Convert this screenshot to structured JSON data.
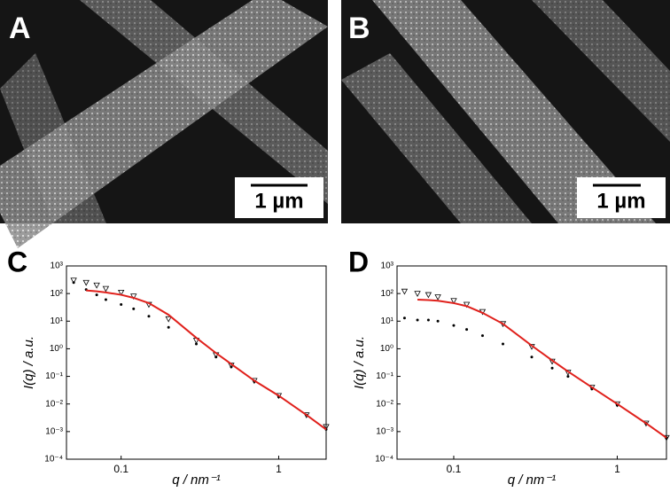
{
  "panels": [
    {
      "label": "A",
      "scale_bar": "1 µm"
    },
    {
      "label": "B",
      "scale_bar": "1 µm"
    }
  ],
  "chart_data": [
    {
      "type": "line",
      "panel": "C",
      "xlabel": "q / nm⁻¹",
      "ylabel": "I(q) / a.u.",
      "xscale": "log",
      "yscale": "log",
      "xlim": [
        0.045,
        2
      ],
      "ylim": [
        0.0001,
        1000
      ],
      "xticks": [
        0.1,
        1
      ],
      "yticks": [
        {
          "value": 0.0001,
          "label": "10⁻⁴"
        },
        {
          "value": 0.001,
          "label": "10⁻³"
        },
        {
          "value": 0.01,
          "label": "10⁻²"
        },
        {
          "value": 0.1,
          "label": "10⁻¹"
        },
        {
          "value": 1,
          "label": "10⁰"
        },
        {
          "value": 10,
          "label": "10¹"
        },
        {
          "value": 100,
          "label": "10²"
        },
        {
          "value": 1000,
          "label": "10³"
        }
      ],
      "x": [
        0.05,
        0.06,
        0.07,
        0.08,
        0.1,
        0.12,
        0.15,
        0.2,
        0.3,
        0.4,
        0.5,
        0.7,
        1,
        1.5,
        2
      ],
      "series": [
        {
          "color": "#000000",
          "marker": "triangle",
          "values": [
            300,
            250,
            200,
            150,
            110,
            80,
            40,
            12,
            2,
            0.6,
            0.25,
            0.07,
            0.02,
            0.004,
            0.0015
          ]
        },
        {
          "color": "#000000",
          "marker": "dot",
          "values": [
            250,
            140,
            90,
            60,
            40,
            28,
            15,
            6,
            1.5,
            0.5,
            0.22,
            0.065,
            0.018,
            0.004,
            0.0012
          ]
        },
        {
          "color": "#e0201b",
          "marker": "none",
          "values": [
            null,
            130,
            120,
            110,
            90,
            70,
            45,
            17,
            2.5,
            0.7,
            0.28,
            0.07,
            0.02,
            0.004,
            0.0012
          ]
        }
      ]
    },
    {
      "type": "line",
      "panel": "D",
      "xlabel": "q / nm⁻¹",
      "ylabel": "I(q) / a.u.",
      "xscale": "log",
      "yscale": "log",
      "xlim": [
        0.045,
        2
      ],
      "ylim": [
        0.0001,
        1000
      ],
      "xticks": [
        0.1,
        1
      ],
      "yticks": [
        {
          "value": 0.0001,
          "label": "10⁻⁴"
        },
        {
          "value": 0.001,
          "label": "10⁻³"
        },
        {
          "value": 0.01,
          "label": "10⁻²"
        },
        {
          "value": 0.1,
          "label": "10⁻¹"
        },
        {
          "value": 1,
          "label": "10⁰"
        },
        {
          "value": 10,
          "label": "10¹"
        },
        {
          "value": 100,
          "label": "10²"
        },
        {
          "value": 1000,
          "label": "10³"
        }
      ],
      "x": [
        0.05,
        0.06,
        0.07,
        0.08,
        0.1,
        0.12,
        0.15,
        0.2,
        0.3,
        0.4,
        0.5,
        0.7,
        1,
        1.5,
        2
      ],
      "series": [
        {
          "color": "#000000",
          "marker": "triangle",
          "values": [
            120,
            100,
            90,
            75,
            55,
            40,
            22,
            8,
            1.2,
            0.35,
            0.14,
            0.04,
            0.01,
            0.002,
            0.0006
          ]
        },
        {
          "color": "#000000",
          "marker": "dot",
          "values": [
            13,
            11,
            11,
            10,
            7,
            5,
            3,
            1.5,
            0.5,
            0.2,
            0.1,
            0.035,
            0.009,
            0.002,
            0.0006
          ]
        },
        {
          "color": "#e0201b",
          "marker": "none",
          "values": [
            null,
            60,
            58,
            55,
            45,
            35,
            20,
            8,
            1.3,
            0.38,
            0.15,
            0.04,
            0.01,
            0.002,
            0.0006
          ]
        }
      ]
    }
  ]
}
